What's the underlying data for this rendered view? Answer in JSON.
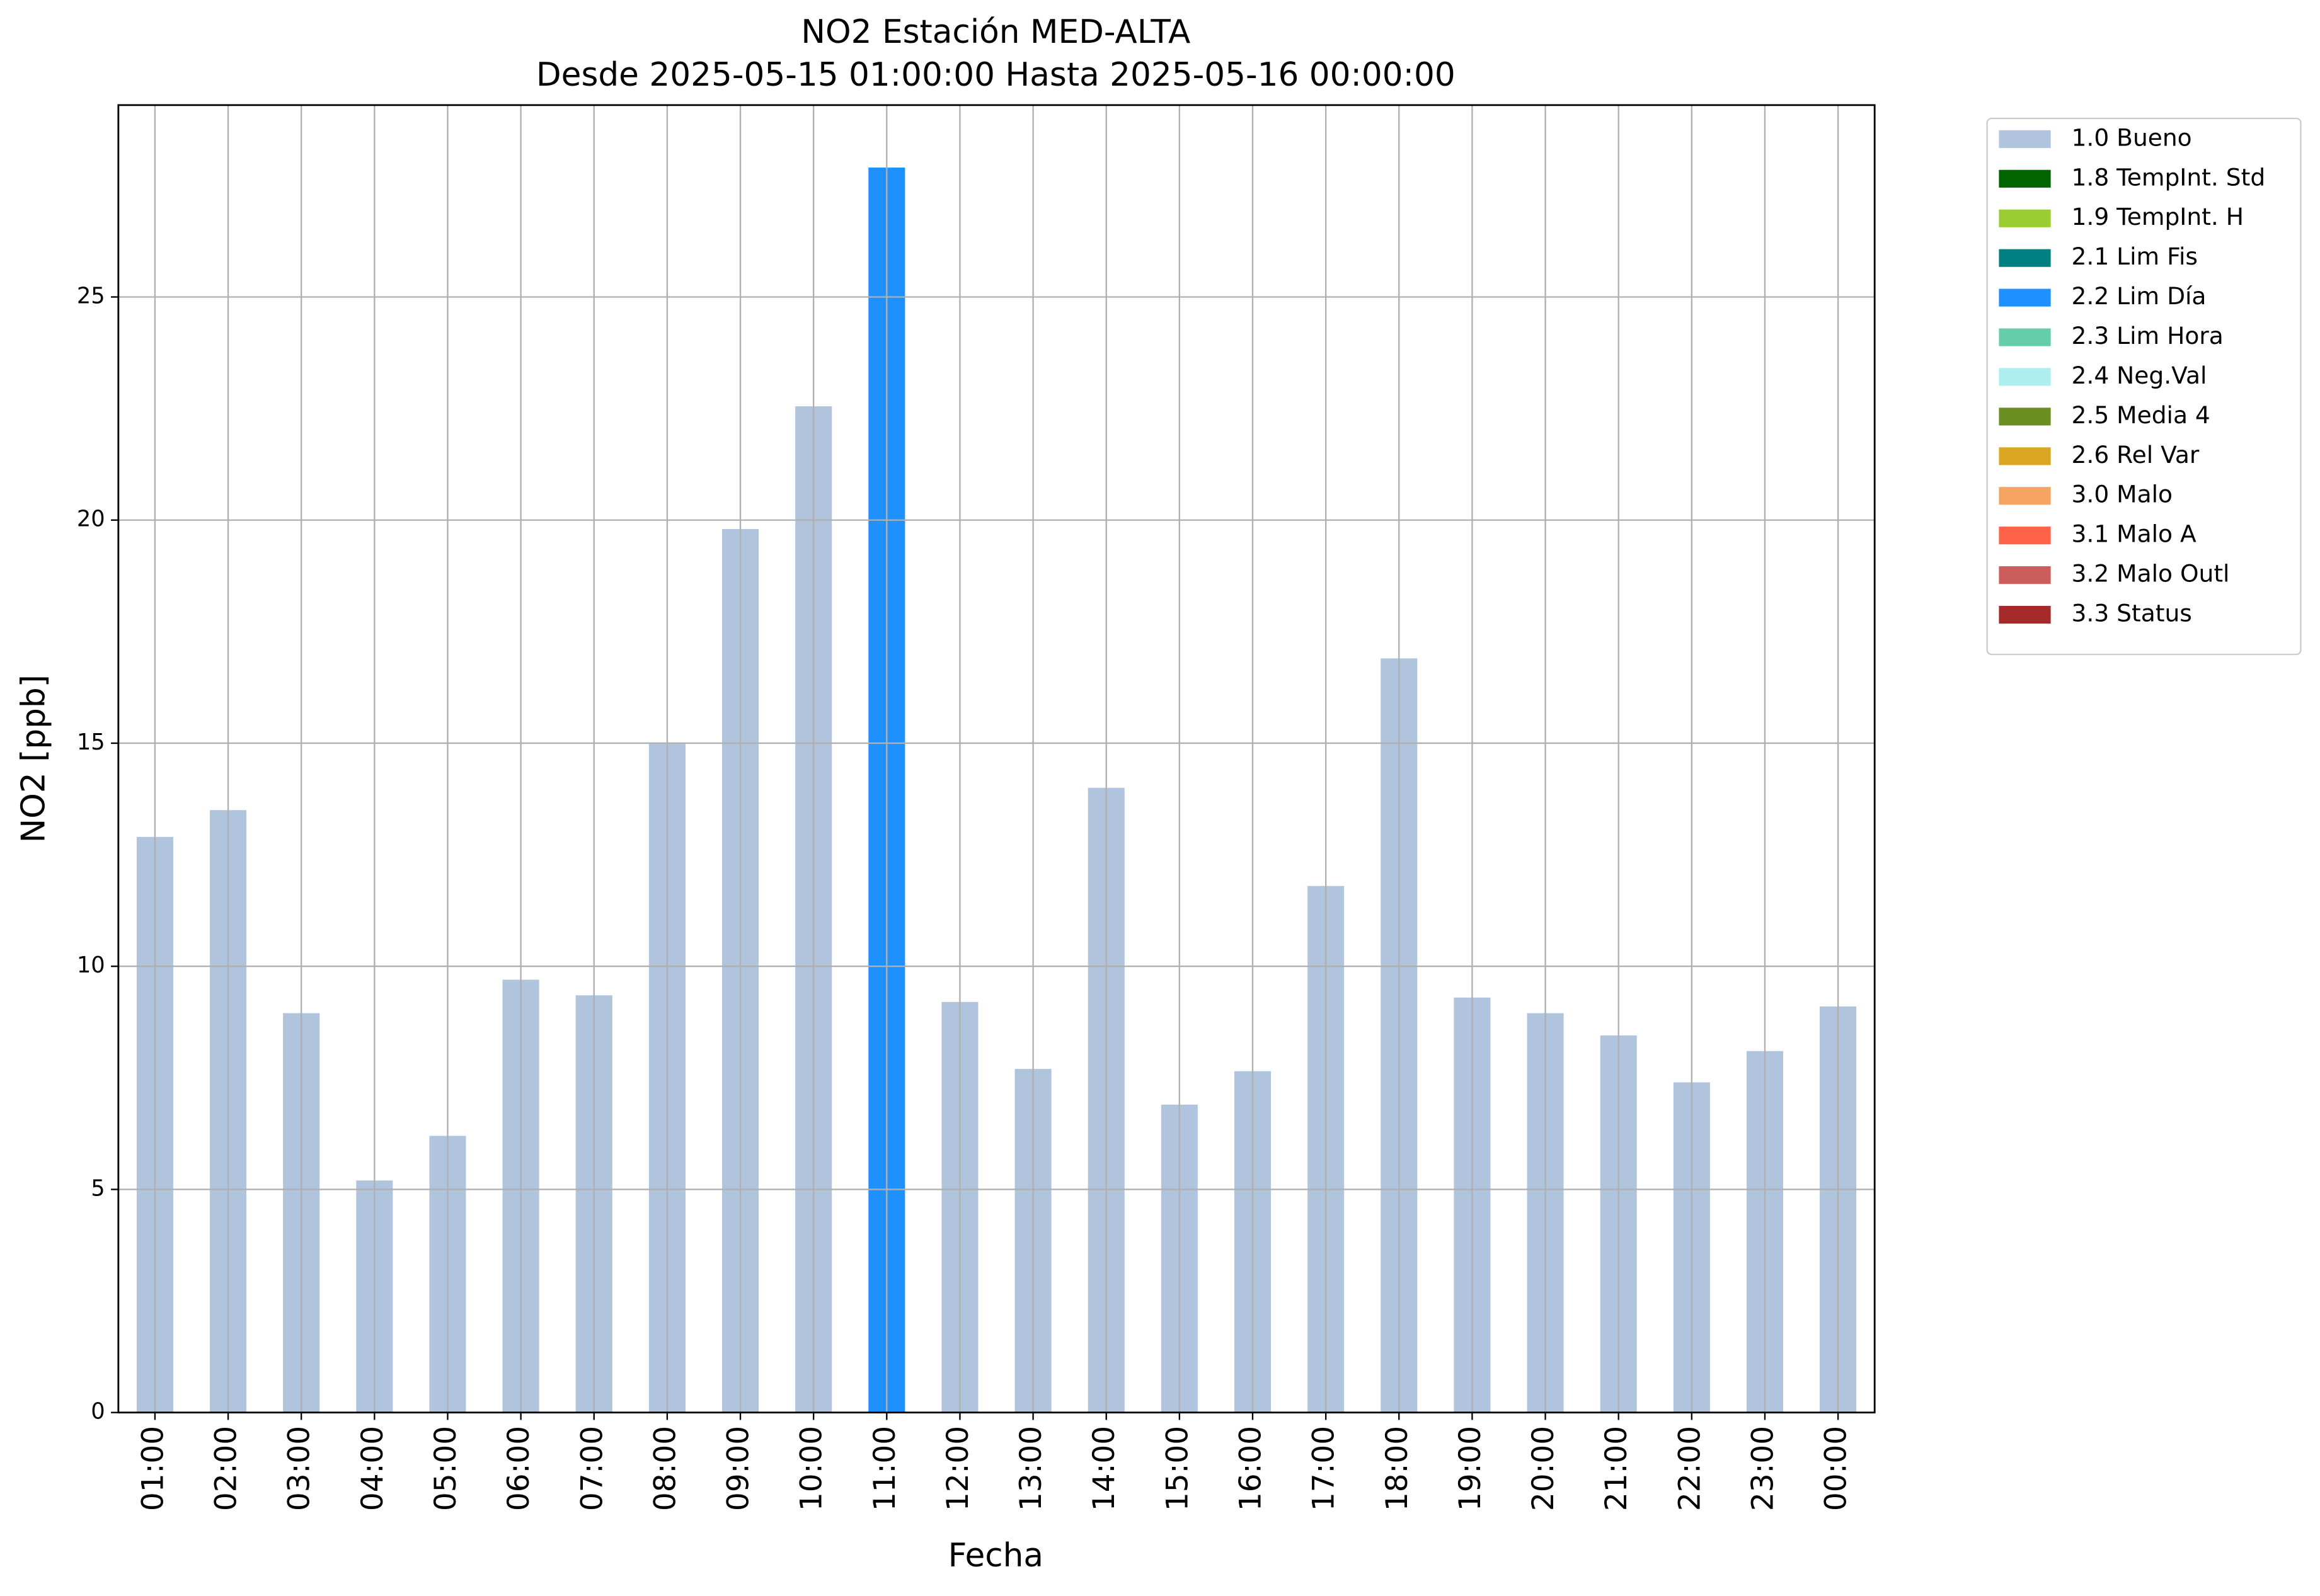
{
  "chart_data": {
    "type": "bar",
    "stacked": true,
    "title": "NO2 Estación MED-ALTA",
    "subtitle": "Desde 2025-05-15 01:00:00 Hasta 2025-05-16 00:00:00",
    "x_label": "Fecha",
    "y_label": "NO2 [ppb]",
    "categories": [
      "01:00",
      "02:00",
      "03:00",
      "04:00",
      "05:00",
      "06:00",
      "07:00",
      "08:00",
      "09:00",
      "10:00",
      "11:00",
      "12:00",
      "13:00",
      "14:00",
      "15:00",
      "16:00",
      "17:00",
      "18:00",
      "19:00",
      "20:00",
      "21:00",
      "22:00",
      "23:00",
      "00:00"
    ],
    "series": [
      {
        "name": "1.0 Bueno",
        "color": "#b0c4de",
        "values": [
          12.9,
          13.5,
          8.95,
          5.2,
          6.2,
          9.7,
          9.35,
          15.0,
          19.8,
          22.55,
          null,
          9.2,
          7.7,
          14.0,
          6.9,
          7.65,
          11.8,
          16.9,
          9.3,
          8.95,
          8.45,
          7.4,
          8.1,
          9.1
        ]
      },
      {
        "name": "1.8 TempInt. Std",
        "color": "#006400",
        "values": [
          null,
          null,
          null,
          null,
          null,
          null,
          null,
          null,
          null,
          null,
          null,
          null,
          null,
          null,
          null,
          null,
          null,
          null,
          null,
          null,
          null,
          null,
          null,
          null
        ]
      },
      {
        "name": "1.9 TempInt. H",
        "color": "#9acd32",
        "values": [
          null,
          null,
          null,
          null,
          null,
          null,
          null,
          null,
          null,
          null,
          null,
          null,
          null,
          null,
          null,
          null,
          null,
          null,
          null,
          null,
          null,
          null,
          null,
          null
        ]
      },
      {
        "name": "2.1 Lim Fis",
        "color": "#008080",
        "values": [
          null,
          null,
          null,
          null,
          null,
          null,
          null,
          null,
          null,
          null,
          null,
          null,
          null,
          null,
          null,
          null,
          null,
          null,
          null,
          null,
          null,
          null,
          null,
          null
        ]
      },
      {
        "name": "2.2 Lim Día",
        "color": "#1e90ff",
        "values": [
          null,
          null,
          null,
          null,
          null,
          null,
          null,
          null,
          null,
          null,
          27.9,
          null,
          null,
          null,
          null,
          null,
          null,
          null,
          null,
          null,
          null,
          null,
          null,
          null
        ]
      },
      {
        "name": "2.3 Lim Hora",
        "color": "#66cdaa",
        "values": [
          null,
          null,
          null,
          null,
          null,
          null,
          null,
          null,
          null,
          null,
          null,
          null,
          null,
          null,
          null,
          null,
          null,
          null,
          null,
          null,
          null,
          null,
          null,
          null
        ]
      },
      {
        "name": "2.4 Neg.Val",
        "color": "#afeeee",
        "values": [
          null,
          null,
          null,
          null,
          null,
          null,
          null,
          null,
          null,
          null,
          null,
          null,
          null,
          null,
          null,
          null,
          null,
          null,
          null,
          null,
          null,
          null,
          null,
          null
        ]
      },
      {
        "name": "2.5 Media 4",
        "color": "#6b8e23",
        "values": [
          null,
          null,
          null,
          null,
          null,
          null,
          null,
          null,
          null,
          null,
          null,
          null,
          null,
          null,
          null,
          null,
          null,
          null,
          null,
          null,
          null,
          null,
          null,
          null
        ]
      },
      {
        "name": "2.6 Rel Var",
        "color": "#daa520",
        "values": [
          null,
          null,
          null,
          null,
          null,
          null,
          null,
          null,
          null,
          null,
          null,
          null,
          null,
          null,
          null,
          null,
          null,
          null,
          null,
          null,
          null,
          null,
          null,
          null
        ]
      },
      {
        "name": "3.0 Malo",
        "color": "#f4a460",
        "values": [
          null,
          null,
          null,
          null,
          null,
          null,
          null,
          null,
          null,
          null,
          null,
          null,
          null,
          null,
          null,
          null,
          null,
          null,
          null,
          null,
          null,
          null,
          null,
          null
        ]
      },
      {
        "name": "3.1 Malo A",
        "color": "#ff6347",
        "values": [
          null,
          null,
          null,
          null,
          null,
          null,
          null,
          null,
          null,
          null,
          null,
          null,
          null,
          null,
          null,
          null,
          null,
          null,
          null,
          null,
          null,
          null,
          null,
          null
        ]
      },
      {
        "name": "3.2 Malo Outl",
        "color": "#cd5c5c",
        "values": [
          null,
          null,
          null,
          null,
          null,
          null,
          null,
          null,
          null,
          null,
          null,
          null,
          null,
          null,
          null,
          null,
          null,
          null,
          null,
          null,
          null,
          null,
          null,
          null
        ]
      },
      {
        "name": "3.3 Status",
        "color": "#a52a2a",
        "values": [
          null,
          null,
          null,
          null,
          null,
          null,
          null,
          null,
          null,
          null,
          null,
          null,
          null,
          null,
          null,
          null,
          null,
          null,
          null,
          null,
          null,
          null,
          null,
          null
        ]
      }
    ],
    "ylim": [
      0,
      29.3
    ],
    "yticks": [
      0,
      5,
      10,
      15,
      20,
      25
    ],
    "grid": true,
    "legend": "outside-right"
  }
}
